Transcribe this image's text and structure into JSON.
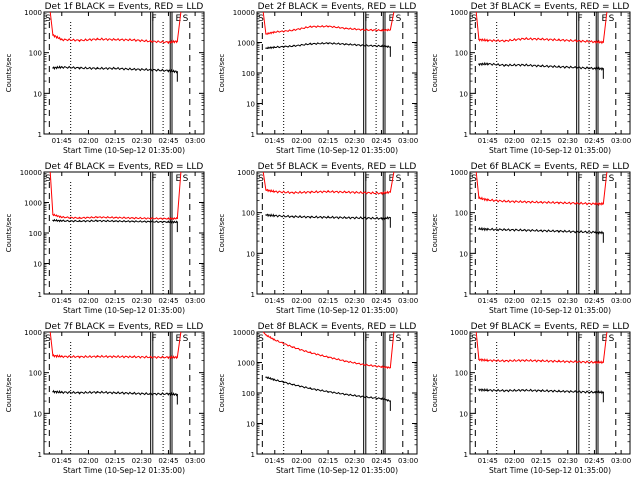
{
  "figure": {
    "ylabel": "Counts/sec",
    "xlabel": "Start Time (10-Sep-12 01:35:00)",
    "x_tick_labels": [
      "01:45",
      "02:00",
      "02:15",
      "02:30",
      "02:45",
      "03:00"
    ],
    "y_tick_labels": [
      "1",
      "10",
      "100",
      "1000",
      "10000"
    ],
    "marker_labels": {
      "start": "S",
      "flare": "F",
      "end": "E",
      "end2": "S"
    },
    "colors": {
      "events": "#000000",
      "lld": "#ff0000",
      "axes": "#000000"
    }
  },
  "chart_data": [
    {
      "type": "line",
      "title": "Det 1f BLACK = Events, RED = LLD",
      "xlabel": "Start Time (10-Sep-12 01:35:00)",
      "ylabel": "Counts/sec",
      "x_unit": "minutes since 01:35:00",
      "xlim": [
        0,
        90
      ],
      "ylim": [
        1,
        1000
      ],
      "y_scale": "log",
      "x": [
        5,
        10,
        20,
        30,
        40,
        50,
        60,
        70,
        75
      ],
      "series": [
        {
          "name": "LLD",
          "color": "#ff0000",
          "values": [
            270,
            210,
            200,
            215,
            210,
            205,
            190,
            180,
            190
          ]
        },
        {
          "name": "Events",
          "color": "#000000",
          "values": [
            42,
            44,
            42,
            41,
            41,
            39,
            38,
            36,
            34
          ]
        }
      ]
    },
    {
      "type": "line",
      "title": "Det 2f BLACK = Events, RED = LLD",
      "xlabel": "Start Time (10-Sep-12 01:35:00)",
      "ylabel": "Counts/sec",
      "x_unit": "minutes since 01:35:00",
      "xlim": [
        0,
        90
      ],
      "ylim": [
        1,
        10000
      ],
      "y_scale": "log",
      "x": [
        5,
        10,
        20,
        30,
        40,
        50,
        60,
        70,
        75
      ],
      "series": [
        {
          "name": "LLD",
          "color": "#ff0000",
          "values": [
            1900,
            2200,
            2500,
            3300,
            3400,
            2900,
            2600,
            2500,
            2600
          ]
        },
        {
          "name": "Events",
          "color": "#000000",
          "values": [
            650,
            700,
            760,
            900,
            950,
            880,
            800,
            760,
            720
          ]
        }
      ]
    },
    {
      "type": "line",
      "title": "Det 3f BLACK = Events, RED = LLD",
      "xlabel": "Start Time (10-Sep-12 01:35:00)",
      "ylabel": "Counts/sec",
      "x_unit": "minutes since 01:35:00",
      "xlim": [
        0,
        90
      ],
      "ylim": [
        1,
        1000
      ],
      "y_scale": "log",
      "x": [
        5,
        10,
        20,
        30,
        40,
        50,
        60,
        70,
        75
      ],
      "series": [
        {
          "name": "LLD",
          "color": "#ff0000",
          "values": [
            210,
            200,
            195,
            220,
            215,
            205,
            195,
            185,
            180
          ]
        },
        {
          "name": "Events",
          "color": "#000000",
          "values": [
            52,
            53,
            49,
            50,
            47,
            45,
            43,
            41,
            40
          ]
        }
      ]
    },
    {
      "type": "line",
      "title": "Det 4f BLACK = Events, RED = LLD",
      "xlabel": "Start Time (10-Sep-12 01:35:00)",
      "ylabel": "Counts/sec",
      "x_unit": "minutes since 01:35:00",
      "xlim": [
        0,
        90
      ],
      "ylim": [
        1,
        10000
      ],
      "y_scale": "log",
      "x": [
        5,
        10,
        20,
        30,
        40,
        50,
        60,
        70,
        75
      ],
      "series": [
        {
          "name": "LLD",
          "color": "#ff0000",
          "values": [
            400,
            330,
            310,
            330,
            320,
            310,
            300,
            295,
            300
          ]
        },
        {
          "name": "Events",
          "color": "#000000",
          "values": [
            260,
            250,
            245,
            250,
            245,
            240,
            235,
            230,
            228
          ]
        }
      ]
    },
    {
      "type": "line",
      "title": "Det 5f BLACK = Events, RED = LLD",
      "xlabel": "Start Time (10-Sep-12 01:35:00)",
      "ylabel": "Counts/sec",
      "x_unit": "minutes since 01:35:00",
      "xlim": [
        0,
        90
      ],
      "ylim": [
        1,
        1000
      ],
      "y_scale": "log",
      "x": [
        5,
        10,
        20,
        30,
        40,
        50,
        60,
        70,
        75
      ],
      "series": [
        {
          "name": "LLD",
          "color": "#ff0000",
          "values": [
            360,
            330,
            310,
            320,
            330,
            320,
            310,
            300,
            320
          ]
        },
        {
          "name": "Events",
          "color": "#000000",
          "values": [
            88,
            84,
            80,
            78,
            77,
            75,
            74,
            72,
            75
          ]
        }
      ]
    },
    {
      "type": "line",
      "title": "Det 6f BLACK = Events, RED = LLD",
      "xlabel": "Start Time (10-Sep-12 01:35:00)",
      "ylabel": "Counts/sec",
      "x_unit": "minutes since 01:35:00",
      "xlim": [
        0,
        90
      ],
      "ylim": [
        1,
        1000
      ],
      "y_scale": "log",
      "x": [
        5,
        10,
        20,
        30,
        40,
        50,
        60,
        70,
        75
      ],
      "series": [
        {
          "name": "LLD",
          "color": "#ff0000",
          "values": [
            230,
            205,
            190,
            185,
            180,
            175,
            170,
            165,
            165
          ]
        },
        {
          "name": "Events",
          "color": "#000000",
          "values": [
            40,
            39,
            38,
            37,
            36,
            35,
            34,
            33,
            32
          ]
        }
      ]
    },
    {
      "type": "line",
      "title": "Det 7f BLACK = Events, RED = LLD",
      "xlabel": "Start Time (10-Sep-12 01:35:00)",
      "ylabel": "Counts/sec",
      "x_unit": "minutes since 01:35:00",
      "xlim": [
        0,
        90
      ],
      "ylim": [
        1,
        1000
      ],
      "y_scale": "log",
      "x": [
        5,
        10,
        20,
        30,
        40,
        50,
        60,
        70,
        75
      ],
      "series": [
        {
          "name": "LLD",
          "color": "#ff0000",
          "values": [
            260,
            250,
            245,
            250,
            248,
            245,
            240,
            238,
            240
          ]
        },
        {
          "name": "Events",
          "color": "#000000",
          "values": [
            34,
            33,
            32,
            33,
            32,
            31,
            30,
            30,
            29
          ]
        }
      ]
    },
    {
      "type": "line",
      "title": "Det 8f BLACK = Events, RED = LLD",
      "xlabel": "Start Time (10-Sep-12 01:35:00)",
      "ylabel": "Counts/sec",
      "x_unit": "minutes since 01:35:00",
      "xlim": [
        0,
        90
      ],
      "ylim": [
        1,
        10000
      ],
      "y_scale": "log",
      "x": [
        5,
        10,
        20,
        30,
        40,
        50,
        60,
        70,
        75
      ],
      "series": [
        {
          "name": "LLD",
          "color": "#ff0000",
          "values": [
            8000,
            5500,
            3200,
            2100,
            1500,
            1100,
            850,
            720,
            680
          ]
        },
        {
          "name": "Events",
          "color": "#000000",
          "values": [
            330,
            270,
            190,
            140,
            110,
            90,
            75,
            65,
            55
          ]
        }
      ]
    },
    {
      "type": "line",
      "title": "Det 9f BLACK = Events, RED = LLD",
      "xlabel": "Start Time (10-Sep-12 01:35:00)",
      "ylabel": "Counts/sec",
      "x_unit": "minutes since 01:35:00",
      "xlim": [
        0,
        90
      ],
      "ylim": [
        1,
        1000
      ],
      "y_scale": "log",
      "x": [
        5,
        10,
        20,
        30,
        40,
        50,
        60,
        70,
        75
      ],
      "series": [
        {
          "name": "LLD",
          "color": "#ff0000",
          "values": [
            210,
            200,
            195,
            200,
            195,
            190,
            185,
            180,
            180
          ]
        },
        {
          "name": "Events",
          "color": "#000000",
          "values": [
            38,
            37,
            36,
            37,
            36,
            35,
            34,
            33,
            33
          ]
        }
      ]
    }
  ]
}
